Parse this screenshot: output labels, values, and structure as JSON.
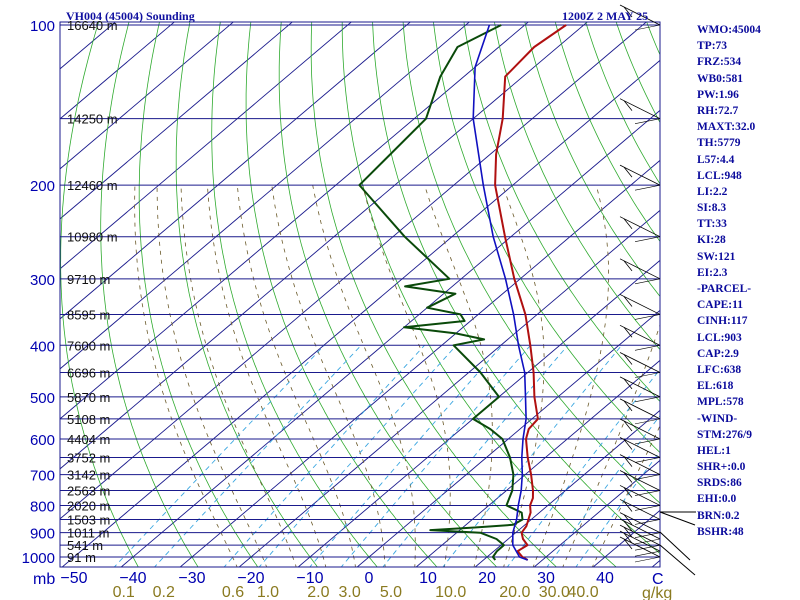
{
  "header": {
    "station_title": "VH004 (45004) Sounding",
    "valid_time": "1200Z  2 MAY 25"
  },
  "side_panel": [
    "WMO:45004",
    "TP:73",
    "FRZ:534",
    "WB0:581",
    "PW:1.96",
    "RH:72.7",
    "MAXT:32.0",
    "TH:5779",
    "L57:4.4",
    "LCL:948",
    "LI:2.2",
    "SI:8.3",
    "TT:33",
    "KI:28",
    "SW:121",
    "EI:2.3",
    "-PARCEL-",
    "CAPE:11",
    "CINH:117",
    "LCL:903",
    "CAP:2.9",
    "LFC:638",
    "EL:618",
    "MPL:578",
    "-WIND-",
    "STM:276/9",
    "HEL:1",
    "SHR+:0.0",
    "SRDS:86",
    "EHI:0.0",
    "BRN:0.2",
    "BSHR:48"
  ],
  "colors": {
    "axis_blue": "#1a1a8c",
    "isotherm_green": "#1f9b1f",
    "dry_adiabat_green": "#2faa2f",
    "mixing_ratio_cyan": "#3aa6e0",
    "moist_adiabat_brown": "#6b5a2a",
    "temperature_red": "#b01010",
    "dewpoint_green": "#0a4a0a",
    "parcel_blue": "#1010c0",
    "wind_black": "#000000"
  },
  "chart_data": {
    "type": "skew-t log-p",
    "title": "VH004 (45004) Sounding",
    "xlabel_left": "mb",
    "mixing_ratio_unit": "g/kg",
    "pressure_levels": [
      100,
      200,
      300,
      400,
      500,
      600,
      700,
      800,
      900,
      1000
    ],
    "pressure_labels": [
      "100",
      "200",
      "300",
      "400",
      "500",
      "600",
      "700",
      "800",
      "900",
      "1000"
    ],
    "temperature_ticks": [
      -50,
      -40,
      -30,
      -20,
      -10,
      0,
      10,
      20,
      30,
      40
    ],
    "temperature_tick_labels": [
      "−50",
      "−40",
      "−30",
      "−20",
      "−10",
      "0",
      "10",
      "20",
      "30",
      "40"
    ],
    "corner_label": "C",
    "mixing_ratio_values": [
      0.1,
      0.2,
      0.6,
      1.0,
      2.0,
      3.0,
      5.0,
      10.0,
      20.0,
      30.0,
      40.0
    ],
    "mixing_ratio_labels": [
      "0.1",
      "0.2",
      "0.6",
      "1.0",
      "2.0",
      "3.0",
      "5.0",
      "10.0",
      "20.0",
      "30.0",
      "40.0"
    ],
    "height_labels": [
      {
        "p": 100,
        "text": "16640 m"
      },
      {
        "p": 150,
        "text": "14250 m"
      },
      {
        "p": 200,
        "text": "12460 m"
      },
      {
        "p": 250,
        "text": "10980 m"
      },
      {
        "p": 300,
        "text": "9710 m"
      },
      {
        "p": 350,
        "text": "8595 m"
      },
      {
        "p": 400,
        "text": "7600 m"
      },
      {
        "p": 450,
        "text": "6696 m"
      },
      {
        "p": 500,
        "text": "5870 m"
      },
      {
        "p": 550,
        "text": "5108 m"
      },
      {
        "p": 600,
        "text": "4404 m"
      },
      {
        "p": 650,
        "text": "3752 m"
      },
      {
        "p": 700,
        "text": "3142 m"
      },
      {
        "p": 750,
        "text": "2563 m"
      },
      {
        "p": 800,
        "text": "2020 m"
      },
      {
        "p": 850,
        "text": "1503 m"
      },
      {
        "p": 900,
        "text": "1011 m"
      },
      {
        "p": 950,
        "text": "541 m"
      },
      {
        "p": 1000,
        "text": "91 m"
      }
    ],
    "series": [
      {
        "name": "temperature",
        "points": [
          [
            1013,
            27.5
          ],
          [
            1000,
            26
          ],
          [
            975,
            24
          ],
          [
            950,
            24.5
          ],
          [
            925,
            22.5
          ],
          [
            900,
            21
          ],
          [
            875,
            20.5
          ],
          [
            850,
            19.5
          ],
          [
            825,
            18.5
          ],
          [
            800,
            17
          ],
          [
            775,
            16
          ],
          [
            750,
            14.5
          ],
          [
            700,
            11
          ],
          [
            650,
            7
          ],
          [
            600,
            3
          ],
          [
            575,
            1.5
          ],
          [
            550,
            1
          ],
          [
            500,
            -4
          ],
          [
            450,
            -9
          ],
          [
            400,
            -15
          ],
          [
            350,
            -22
          ],
          [
            300,
            -31
          ],
          [
            250,
            -41
          ],
          [
            200,
            -53
          ],
          [
            175,
            -59
          ],
          [
            150,
            -65
          ],
          [
            125,
            -73
          ],
          [
            110,
            -74
          ],
          [
            100,
            -73
          ]
        ]
      },
      {
        "name": "dewpoint",
        "points": [
          [
            1013,
            22
          ],
          [
            1000,
            21
          ],
          [
            975,
            20.5
          ],
          [
            950,
            20.5
          ],
          [
            925,
            18
          ],
          [
            900,
            14
          ],
          [
            890,
            5
          ],
          [
            880,
            12
          ],
          [
            870,
            18
          ],
          [
            850,
            18.5
          ],
          [
            825,
            17
          ],
          [
            800,
            13
          ],
          [
            775,
            12
          ],
          [
            750,
            11
          ],
          [
            700,
            8
          ],
          [
            650,
            4
          ],
          [
            600,
            -1
          ],
          [
            575,
            -5
          ],
          [
            550,
            -10
          ],
          [
            500,
            -10
          ],
          [
            450,
            -18
          ],
          [
            400,
            -28
          ],
          [
            390,
            -24
          ],
          [
            380,
            -30
          ],
          [
            370,
            -40
          ],
          [
            360,
            -31
          ],
          [
            350,
            -33
          ],
          [
            340,
            -40
          ],
          [
            320,
            -38
          ],
          [
            310,
            -48
          ],
          [
            300,
            -42
          ],
          [
            250,
            -58
          ],
          [
            200,
            -76
          ],
          [
            150,
            -78
          ],
          [
            125,
            -84
          ],
          [
            110,
            -87
          ],
          [
            100,
            -84
          ]
        ]
      },
      {
        "name": "parcel",
        "points": [
          [
            1013,
            27.5
          ],
          [
            1000,
            25.5
          ],
          [
            950,
            22
          ],
          [
            900,
            19.5
          ],
          [
            850,
            17.5
          ],
          [
            800,
            15
          ],
          [
            750,
            12.5
          ],
          [
            700,
            9.5
          ],
          [
            650,
            6
          ],
          [
            600,
            2.5
          ],
          [
            550,
            -1
          ],
          [
            500,
            -5.5
          ],
          [
            450,
            -10.5
          ],
          [
            400,
            -17
          ],
          [
            350,
            -24
          ],
          [
            300,
            -32.5
          ],
          [
            250,
            -43
          ],
          [
            200,
            -55
          ],
          [
            150,
            -70
          ],
          [
            120,
            -80
          ],
          [
            100,
            -86
          ]
        ]
      }
    ],
    "wind_profile_pressures": [
      1000,
      975,
      950,
      925,
      900,
      850,
      800,
      750,
      700,
      650,
      600,
      550,
      500,
      450,
      400,
      350,
      300,
      250,
      200,
      150,
      100
    ]
  }
}
